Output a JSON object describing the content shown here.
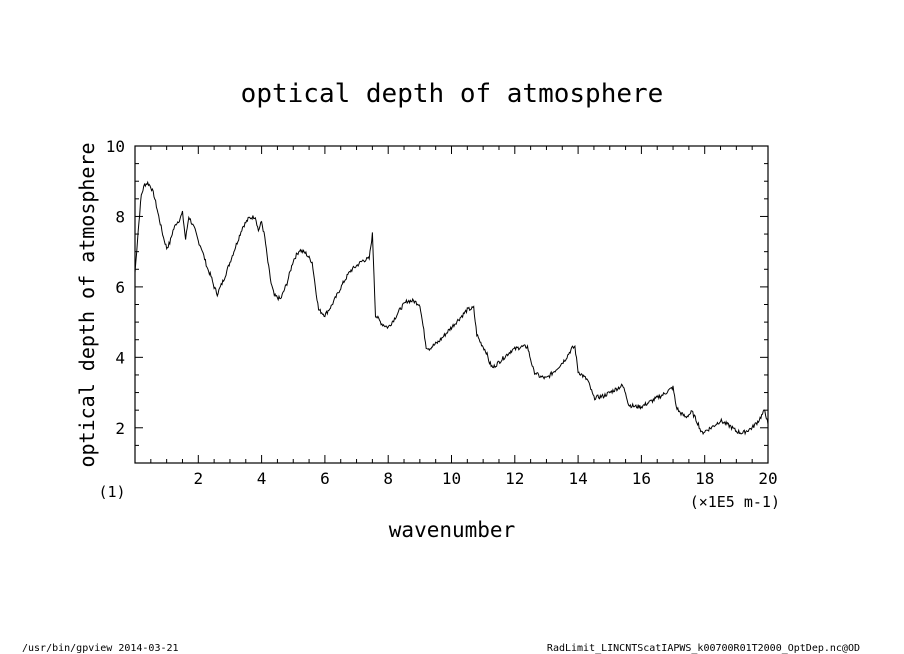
{
  "chart_data": {
    "type": "line",
    "title": "optical depth of atmosphere",
    "ylabel": "optical depth of atmosphere",
    "xlabel": "wavenumber",
    "x_unit": "(×1E5 m-1)",
    "y_unit_note": "(1)",
    "xlim": [
      0,
      20
    ],
    "ylim": [
      1,
      10
    ],
    "xticks": [
      "2",
      "4",
      "6",
      "8",
      "10",
      "12",
      "14",
      "16",
      "18",
      "20"
    ],
    "yticks": [
      "2",
      "4",
      "6",
      "8",
      "10"
    ],
    "grid": false,
    "series": [
      {
        "x": [
          0.0,
          0.1,
          0.2,
          0.3,
          0.4,
          0.5,
          0.6,
          0.7,
          0.8,
          0.9,
          1.0,
          1.1,
          1.2,
          1.3,
          1.4,
          1.5,
          1.6,
          1.7,
          1.8,
          1.9,
          2.0,
          2.1,
          2.2,
          2.3,
          2.4,
          2.5,
          2.6,
          2.8,
          3.0,
          3.2,
          3.4,
          3.6,
          3.8,
          3.9,
          4.0,
          4.1,
          4.2,
          4.3,
          4.4,
          4.6,
          4.8,
          5.0,
          5.2,
          5.4,
          5.6,
          5.7,
          5.8,
          6.0,
          6.2,
          6.4,
          6.6,
          6.8,
          7.0,
          7.2,
          7.4,
          7.5,
          7.6,
          7.8,
          8.0,
          8.2,
          8.4,
          8.6,
          8.8,
          9.0,
          9.1,
          9.2,
          9.3,
          9.6,
          9.9,
          10.2,
          10.5,
          10.7,
          10.8,
          10.9,
          11.1,
          11.2,
          11.3,
          11.6,
          11.9,
          12.2,
          12.4,
          12.6,
          12.8,
          13.0,
          13.3,
          13.6,
          13.8,
          13.9,
          14.0,
          14.3,
          14.5,
          14.8,
          15.1,
          15.4,
          15.5,
          15.6,
          15.8,
          16.0,
          16.3,
          16.7,
          17.0,
          17.1,
          17.2,
          17.4,
          17.6,
          17.8,
          17.9,
          18.2,
          18.5,
          18.8,
          19.0,
          19.2,
          19.5,
          19.7,
          19.8,
          19.9,
          20.0
        ],
        "y": [
          6.4,
          7.6,
          8.6,
          8.9,
          8.95,
          8.85,
          8.6,
          8.2,
          7.8,
          7.4,
          7.1,
          7.25,
          7.6,
          7.8,
          7.9,
          8.1,
          7.35,
          8.0,
          7.8,
          7.6,
          7.3,
          7.1,
          6.8,
          6.5,
          6.3,
          6.0,
          5.8,
          6.2,
          6.7,
          7.2,
          7.7,
          7.95,
          8.0,
          7.6,
          7.85,
          7.4,
          6.7,
          6.1,
          5.75,
          5.65,
          6.1,
          6.75,
          7.05,
          6.95,
          6.7,
          6.0,
          5.35,
          5.2,
          5.45,
          5.8,
          6.15,
          6.45,
          6.6,
          6.75,
          6.8,
          7.5,
          5.2,
          4.95,
          4.85,
          5.1,
          5.4,
          5.6,
          5.6,
          5.5,
          4.9,
          4.3,
          4.25,
          4.45,
          4.75,
          5.05,
          5.35,
          5.4,
          4.65,
          4.45,
          4.15,
          3.85,
          3.7,
          3.95,
          4.2,
          4.3,
          4.3,
          3.6,
          3.45,
          3.4,
          3.65,
          3.95,
          4.25,
          4.3,
          3.6,
          3.35,
          2.85,
          2.9,
          3.05,
          3.2,
          3.0,
          2.65,
          2.6,
          2.6,
          2.75,
          2.95,
          3.15,
          2.6,
          2.45,
          2.3,
          2.45,
          2.1,
          1.85,
          2.0,
          2.2,
          2.05,
          1.9,
          1.85,
          2.0,
          2.2,
          2.35,
          2.5,
          2.1
        ]
      }
    ]
  },
  "footer": {
    "left": "/usr/bin/gpview  2014-03-21",
    "right": "RadLimit_LINCNTScatIAPWS_k00700R01T2000_OptDep.nc@OD"
  }
}
